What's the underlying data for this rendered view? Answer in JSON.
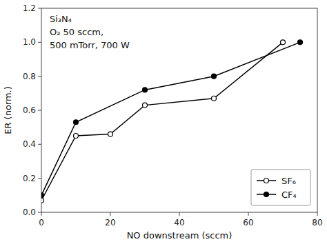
{
  "chart_data": {
    "type": "line",
    "xlabel": "NO downstream (sccm)",
    "ylabel": "ER (norm.)",
    "xlim": [
      0,
      80
    ],
    "ylim": [
      0.0,
      1.2
    ],
    "xticks": [
      0,
      20,
      40,
      60,
      80
    ],
    "yticks": [
      {
        "value": 0.0,
        "label": "0.0"
      },
      0.2,
      0.4,
      0.6,
      0.8,
      {
        "value": 1.0,
        "label": "1.0"
      },
      1.2
    ],
    "annotations": [
      "Si₃N₄",
      "O₂ 50 sccm,",
      "500 mTorr, 700 W"
    ],
    "grid": false,
    "legend": "lower right",
    "series": [
      {
        "name": "SF₆",
        "color": "black",
        "marker": "circle-open",
        "line_style": "solid",
        "x": [
          0,
          10,
          20,
          30,
          50,
          70
        ],
        "values": [
          0.07,
          0.45,
          0.46,
          0.63,
          0.67,
          1.0
        ]
      },
      {
        "name": "CF₄",
        "color": "black",
        "marker": "circle",
        "line_style": "solid",
        "x": [
          0,
          10,
          30,
          50,
          75
        ],
        "values": [
          0.1,
          0.53,
          0.72,
          0.8,
          1.0
        ]
      }
    ]
  }
}
